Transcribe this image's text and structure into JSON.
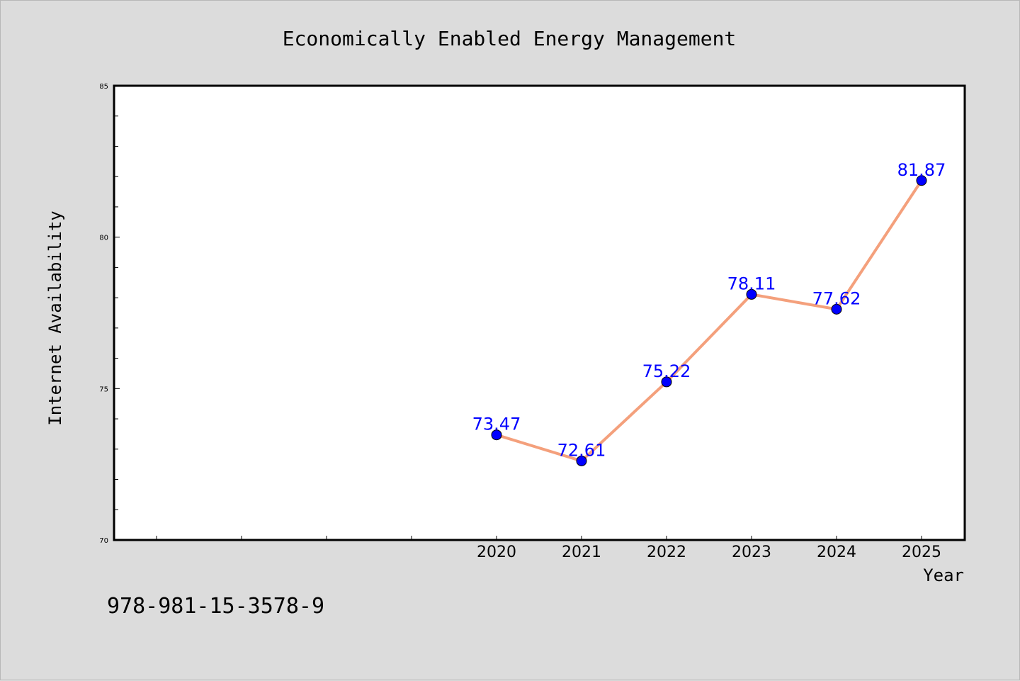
{
  "chart_data": {
    "type": "line",
    "title": "Economically Enabled Energy Management",
    "xlabel": "Year",
    "ylabel": "Internet Availability",
    "x": [
      "2020",
      "2021",
      "2022",
      "2023",
      "2024",
      "2025"
    ],
    "y": [
      73.47,
      72.61,
      75.22,
      78.11,
      77.62,
      81.87
    ],
    "data_labels": [
      "73.47",
      "72.61",
      "75.22",
      "78.11",
      "77.62",
      "81.87"
    ],
    "ylim": [
      70,
      85
    ],
    "yticks": [
      "70",
      "75",
      "80",
      "85"
    ],
    "grid": false,
    "legend": "none",
    "line_color": "#f4a07c",
    "marker_color": "#0000ff",
    "label_color": "#0000ff",
    "plot_background": "#ffffff",
    "figure_background": "#dcdcdc"
  },
  "footer": {
    "isbn": "978-981-15-3578-9"
  }
}
